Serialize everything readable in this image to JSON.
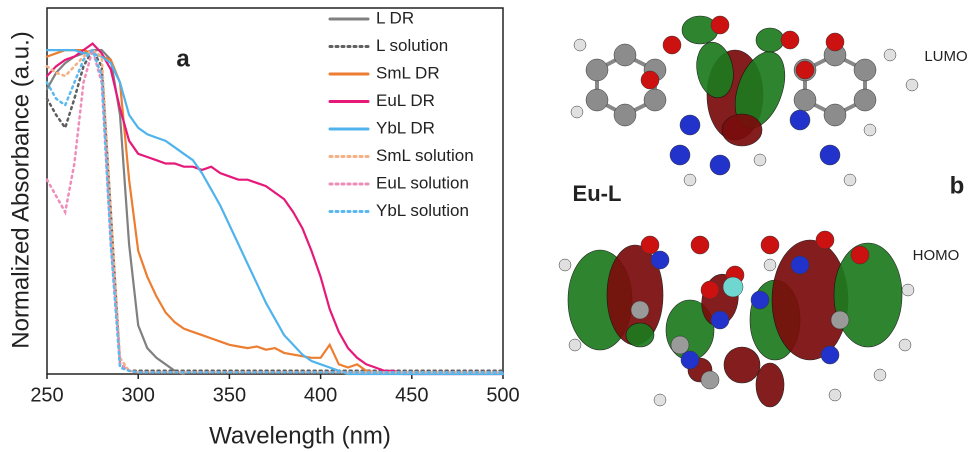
{
  "chart_data": {
    "type": "line",
    "xlabel": "Wavelength (nm)",
    "ylabel": "Normalized Absorbance (a.u.)",
    "annotations": [
      "a",
      "b",
      "Eu-L",
      "LUMO",
      "HOMO"
    ],
    "x": [
      250,
      255,
      260,
      265,
      270,
      275,
      280,
      285,
      290,
      295,
      300,
      305,
      310,
      315,
      320,
      325,
      330,
      335,
      340,
      345,
      350,
      355,
      360,
      365,
      370,
      375,
      380,
      385,
      390,
      395,
      400,
      405,
      410,
      415,
      420,
      425,
      430,
      435,
      440,
      445,
      450,
      455,
      460,
      465,
      470,
      475,
      480,
      485,
      490,
      495,
      500
    ],
    "xlim": [
      250,
      500
    ],
    "xticks": [
      250,
      300,
      350,
      400,
      450,
      500
    ],
    "ylim": [
      0,
      1.13
    ],
    "legend": "upper right",
    "series": [
      {
        "name": "L DR",
        "color": "#808080",
        "dash": "solid",
        "values": [
          0.88,
          0.93,
          0.96,
          0.98,
          0.99,
          1.0,
          1.0,
          0.97,
          0.8,
          0.4,
          0.15,
          0.08,
          0.05,
          0.03,
          0.01,
          0.0,
          null,
          null,
          null,
          null,
          null,
          null,
          null,
          null,
          null,
          null,
          null,
          null,
          null,
          null,
          null,
          null,
          null,
          null,
          null,
          null,
          null,
          null,
          null,
          null,
          null,
          null,
          null,
          null,
          null,
          null,
          null,
          null,
          null,
          null,
          null
        ]
      },
      {
        "name": "L solution",
        "color": "#606060",
        "dash": "dotted",
        "values": [
          0.85,
          0.8,
          0.76,
          0.85,
          0.95,
          1.0,
          0.95,
          0.5,
          0.03,
          0.01,
          0.01,
          0.01,
          0.01,
          0.01,
          0.01,
          0.01,
          0.01,
          0.01,
          0.01,
          0.01,
          0.01,
          0.01,
          0.01,
          0.01,
          0.01,
          0.01,
          0.01,
          0.01,
          0.01,
          0.01,
          0.01,
          0.01,
          0.01,
          0.01,
          0.01,
          0.01,
          0.01,
          0.01,
          0.01,
          0.01,
          0.01,
          0.01,
          0.01,
          0.01,
          0.01,
          0.01,
          0.01,
          0.01,
          0.01,
          0.01,
          0.01
        ]
      },
      {
        "name": "SmL DR",
        "color": "#ed7d31",
        "dash": "solid",
        "values": [
          0.98,
          0.99,
          1.0,
          1.0,
          1.0,
          0.99,
          0.98,
          0.97,
          0.9,
          0.6,
          0.38,
          0.3,
          0.24,
          0.19,
          0.16,
          0.14,
          0.13,
          0.12,
          0.11,
          0.1,
          0.09,
          0.085,
          0.08,
          0.085,
          0.075,
          0.08,
          0.065,
          0.06,
          0.055,
          0.05,
          0.05,
          0.09,
          0.03,
          0.02,
          0.03,
          0.01,
          0.005,
          0.005,
          0.005,
          0.005,
          0.005,
          0.005,
          0.005,
          0.005,
          0.005,
          0.005,
          0.005,
          null,
          null,
          null,
          null
        ]
      },
      {
        "name": "EuL DR",
        "color": "#e6197a",
        "dash": "solid",
        "values": [
          0.92,
          0.95,
          0.97,
          0.98,
          1.0,
          1.02,
          0.99,
          0.94,
          0.82,
          0.72,
          0.68,
          0.67,
          0.66,
          0.65,
          0.65,
          0.64,
          0.64,
          0.63,
          0.64,
          0.62,
          0.61,
          0.6,
          0.6,
          0.59,
          0.58,
          0.56,
          0.54,
          0.5,
          0.45,
          0.38,
          0.3,
          0.2,
          0.13,
          0.08,
          0.05,
          0.03,
          0.02,
          0.01,
          0.01,
          0.0,
          0.0,
          0.0,
          0.0,
          0.0,
          0.0,
          0.0,
          0.0,
          0.0,
          0.0,
          0.0,
          0.0
        ]
      },
      {
        "name": "YbL DR",
        "color": "#4fb3ec",
        "dash": "solid",
        "values": [
          1.0,
          1.0,
          1.0,
          1.0,
          0.99,
          0.99,
          0.98,
          0.96,
          0.9,
          0.8,
          0.76,
          0.74,
          0.73,
          0.72,
          0.7,
          0.68,
          0.66,
          0.62,
          0.57,
          0.52,
          0.46,
          0.4,
          0.34,
          0.28,
          0.22,
          0.17,
          0.12,
          0.09,
          0.06,
          0.04,
          0.03,
          0.02,
          0.01,
          0.0,
          0.0,
          0.0,
          0.0,
          0.0,
          0.0,
          0.0,
          0.0,
          0.0,
          0.0,
          0.0,
          0.0,
          0.0,
          0.0,
          0.0,
          0.0,
          0.0,
          0.0
        ]
      },
      {
        "name": "SmL solution",
        "color": "#f4b183",
        "dash": "dotted",
        "values": [
          0.95,
          0.93,
          0.92,
          0.95,
          0.98,
          1.0,
          0.98,
          0.5,
          0.05,
          0.01,
          0.005,
          0.005,
          0.005,
          0.005,
          0.005,
          0.005,
          0.005,
          0.005,
          0.005,
          0.005,
          0.005,
          0.005,
          0.005,
          0.005,
          0.005,
          0.005,
          0.005,
          0.005,
          0.005,
          0.005,
          0.005,
          0.005,
          0.005,
          0.005,
          0.005,
          0.005,
          0.005,
          0.005,
          0.005,
          0.005,
          0.005,
          0.005,
          0.005,
          0.005,
          0.005,
          0.005,
          0.005,
          0.005,
          0.005,
          0.005,
          0.005
        ]
      },
      {
        "name": "EuL solution",
        "color": "#f08cb8",
        "dash": "dotted",
        "values": [
          0.6,
          0.55,
          0.5,
          0.65,
          0.9,
          1.0,
          0.9,
          0.4,
          0.03,
          0.01,
          0.005,
          0.005,
          0.005,
          0.005,
          0.005,
          0.005,
          0.005,
          0.005,
          0.005,
          0.005,
          0.005,
          0.005,
          0.005,
          0.005,
          0.005,
          0.005,
          0.005,
          0.005,
          0.005,
          0.005,
          0.005,
          0.005,
          0.005,
          0.005,
          0.005,
          0.005,
          0.005,
          0.005,
          0.005,
          0.005,
          0.005,
          0.005,
          0.005,
          0.005,
          0.005,
          0.005,
          0.005,
          0.005,
          0.005,
          0.005,
          0.005
        ]
      },
      {
        "name": "YbL solution",
        "color": "#5bb8f0",
        "dash": "dotted",
        "values": [
          0.9,
          0.85,
          0.83,
          0.9,
          0.97,
          1.0,
          0.92,
          0.4,
          0.02,
          0.01,
          0.005,
          0.005,
          0.005,
          0.005,
          0.005,
          0.005,
          0.005,
          0.005,
          0.005,
          0.005,
          0.005,
          0.005,
          0.005,
          0.005,
          0.005,
          0.005,
          0.005,
          0.005,
          0.005,
          0.005,
          0.005,
          0.005,
          0.005,
          0.005,
          0.005,
          0.005,
          0.005,
          0.005,
          0.005,
          0.005,
          0.005,
          0.005,
          0.005,
          0.005,
          0.005,
          0.005,
          0.005,
          0.005,
          0.005,
          0.005,
          0.005
        ]
      }
    ]
  }
}
